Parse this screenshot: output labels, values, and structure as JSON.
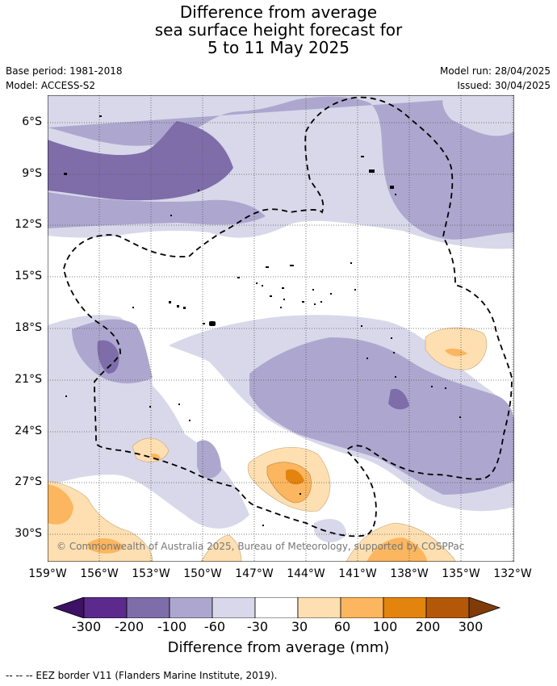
{
  "title": {
    "line1": "Difference from average",
    "line2": "sea surface height forecast for",
    "line3": "5 to 11 May 2025"
  },
  "meta": {
    "base_period": "Base period: 1981-2018",
    "model": "Model: ACCESS-S2",
    "model_run": "Model run: 28/04/2025",
    "issued": "Issued: 30/04/2025"
  },
  "axes": {
    "lat_labels": [
      "6°S",
      "9°S",
      "12°S",
      "15°S",
      "18°S",
      "21°S",
      "24°S",
      "27°S",
      "30°S"
    ],
    "lon_labels": [
      "159°W",
      "156°W",
      "153°W",
      "150°W",
      "147°W",
      "144°W",
      "141°W",
      "138°W",
      "135°W",
      "132°W"
    ]
  },
  "copyright": "© Commonwealth of Australia 2025, Bureau of Meteorology, supported by COSPPac",
  "colorbar": {
    "label": "Difference from average (mm)",
    "ticks": [
      "-300",
      "-200",
      "-100",
      "-60",
      "-30",
      "30",
      "60",
      "100",
      "200",
      "300"
    ],
    "colors": [
      "#3d1163",
      "#5c2a8c",
      "#7f6daa",
      "#ada7cf",
      "#d8d8ea",
      "#ffffff",
      "#fedfb1",
      "#fbb65f",
      "#e3840f",
      "#b35809",
      "#7f3b08"
    ]
  },
  "footer": "--  --  -- EEZ border V11 (Flanders Marine Institute, 2019)."
}
